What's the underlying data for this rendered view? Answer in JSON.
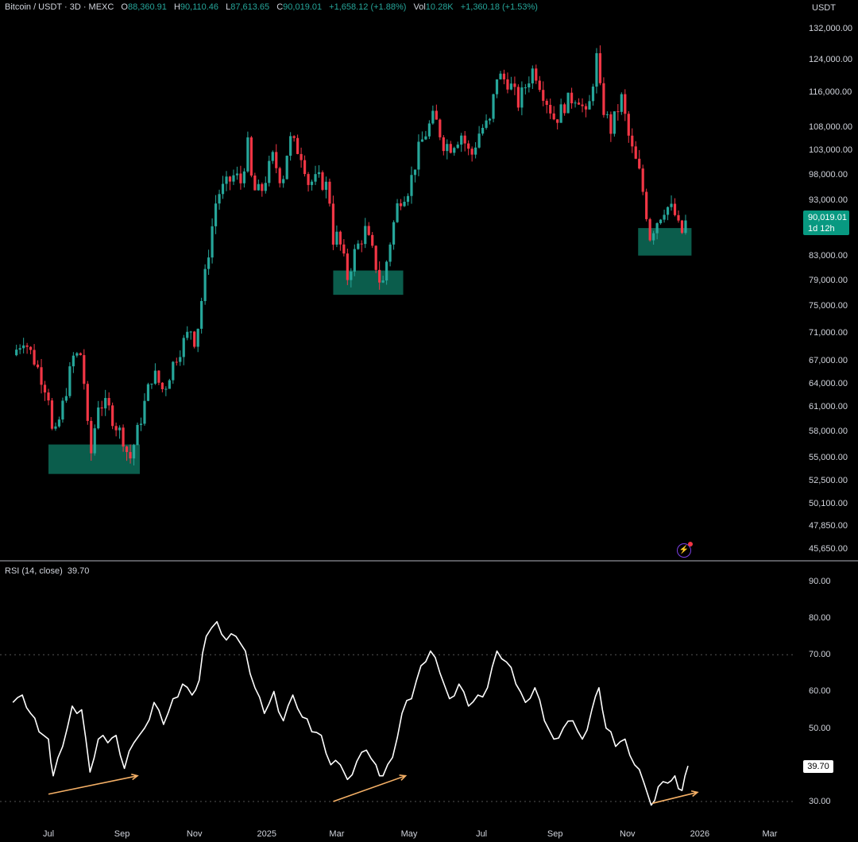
{
  "header": {
    "symbol": "Bitcoin / USDT · 3D · MEXC",
    "o_label": "O",
    "o_value": "88,360.91",
    "h_label": "H",
    "h_value": "90,110.46",
    "l_label": "L",
    "l_value": "87,613.65",
    "c_label": "C",
    "c_value": "90,019.01",
    "change": "+1,658.12 (+1.88%)",
    "vol_label": "Vol",
    "vol_value": "10.28K",
    "vol_change": "+1,360.18 (+1.53%)"
  },
  "price_axis_unit": "USDT",
  "last_price_tag": {
    "price": "90,019.01",
    "countdown": "1d 12h"
  },
  "rsi_header": {
    "label": "RSI (14, close)",
    "value": "39.70"
  },
  "rsi_tag": "39.70",
  "colors": {
    "up": "#26a69a",
    "down": "#f23645",
    "zone": "#0b5d4c",
    "rsi_line": "#ffffff",
    "arrow": "#f5b066",
    "last_price": "#089981"
  },
  "icons": {
    "indicator": "lightning-bolt-icon"
  },
  "chart_data": [
    {
      "type": "candlestick",
      "title": "Bitcoin / USDT · 3D · MEXC",
      "y_scale": "log",
      "ylim": [
        45000,
        135000
      ],
      "price_ticks": [
        "132,000.00",
        "124,000.00",
        "116,000.00",
        "108,000.00",
        "103,000.00",
        "98,000.00",
        "93,000.00",
        "83,000.00",
        "79,000.00",
        "75,000.00",
        "71,000.00",
        "67,000.00",
        "64,000.00",
        "61,000.00",
        "58,000.00",
        "55,000.00",
        "52,500.00",
        "50,100.00",
        "47,850.00",
        "45,650.00"
      ],
      "x_ticks": [
        "Jul",
        "Sep",
        "Nov",
        "2025",
        "Mar",
        "May",
        "Jul",
        "Sep",
        "Nov",
        "2026",
        "Mar"
      ],
      "x_tick_dates": [
        "2024-07-01",
        "2024-09-01",
        "2024-11-01",
        "2025-01-01",
        "2025-03-01",
        "2025-05-01",
        "2025-07-01",
        "2025-09-01",
        "2025-11-01",
        "2026-01-01",
        "2026-03-01"
      ],
      "close_path": [
        [
          "2024-06-01",
          67800
        ],
        [
          "2024-06-10",
          70200
        ],
        [
          "2024-06-20",
          66800
        ],
        [
          "2024-07-01",
          62500
        ],
        [
          "2024-07-05",
          56500
        ],
        [
          "2024-07-12",
          60500
        ],
        [
          "2024-07-22",
          67500
        ],
        [
          "2024-07-29",
          68000
        ],
        [
          "2024-08-05",
          54500
        ],
        [
          "2024-08-12",
          61500
        ],
        [
          "2024-08-20",
          61000
        ],
        [
          "2024-08-26",
          59000
        ],
        [
          "2024-09-03",
          57000
        ],
        [
          "2024-09-07",
          54500
        ],
        [
          "2024-09-15",
          58500
        ],
        [
          "2024-09-27",
          65500
        ],
        [
          "2024-10-06",
          63000
        ],
        [
          "2024-10-16",
          67500
        ],
        [
          "2024-10-29",
          71500
        ],
        [
          "2024-11-02",
          69500
        ],
        [
          "2024-11-11",
          81000
        ],
        [
          "2024-11-20",
          94000
        ],
        [
          "2024-11-28",
          96000
        ],
        [
          "2024-12-05",
          98000
        ],
        [
          "2024-12-10",
          96500
        ],
        [
          "2024-12-16",
          104000
        ],
        [
          "2024-12-20",
          95000
        ],
        [
          "2024-12-27",
          94500
        ],
        [
          "2025-01-06",
          101500
        ],
        [
          "2025-01-14",
          96500
        ],
        [
          "2025-01-20",
          105500
        ],
        [
          "2025-01-23",
          104500
        ],
        [
          "2025-01-31",
          102000
        ],
        [
          "2025-02-05",
          96500
        ],
        [
          "2025-02-14",
          97000
        ],
        [
          "2025-02-22",
          95500
        ],
        [
          "2025-02-26",
          86000
        ],
        [
          "2025-03-02",
          86500
        ],
        [
          "2025-03-10",
          79500
        ],
        [
          "2025-03-16",
          83500
        ],
        [
          "2025-03-25",
          87500
        ],
        [
          "2025-04-01",
          83000
        ],
        [
          "2025-04-08",
          77500
        ],
        [
          "2025-04-14",
          84500
        ],
        [
          "2025-04-22",
          93000
        ],
        [
          "2025-05-01",
          95500
        ],
        [
          "2025-05-10",
          104000
        ],
        [
          "2025-05-22",
          110500
        ],
        [
          "2025-05-30",
          104500
        ],
        [
          "2025-06-05",
          104000
        ],
        [
          "2025-06-14",
          106500
        ],
        [
          "2025-06-22",
          101500
        ],
        [
          "2025-06-30",
          107500
        ],
        [
          "2025-07-08",
          109000
        ],
        [
          "2025-07-14",
          120000
        ],
        [
          "2025-07-24",
          118500
        ],
        [
          "2025-08-01",
          113500
        ],
        [
          "2025-08-10",
          119500
        ],
        [
          "2025-08-14",
          122000
        ],
        [
          "2025-08-22",
          116000
        ],
        [
          "2025-09-01",
          109500
        ],
        [
          "2025-09-10",
          113500
        ],
        [
          "2025-09-20",
          115500
        ],
        [
          "2025-09-28",
          109500
        ],
        [
          "2025-10-06",
          124500
        ],
        [
          "2025-10-10",
          113500
        ],
        [
          "2025-10-18",
          107500
        ],
        [
          "2025-10-27",
          114500
        ],
        [
          "2025-11-03",
          104500
        ],
        [
          "2025-11-12",
          97500
        ],
        [
          "2025-11-20",
          86500
        ],
        [
          "2025-11-24",
          88500
        ],
        [
          "2025-12-03",
          92000
        ],
        [
          "2025-12-10",
          91000
        ],
        [
          "2025-12-16",
          86500
        ],
        [
          "2025-12-22",
          90019
        ]
      ],
      "support_zones": [
        {
          "y_range": [
            53200,
            56500
          ],
          "x_range": [
            "2024-07-01",
            "2024-09-16"
          ]
        },
        {
          "y_range": [
            76700,
            80600
          ],
          "x_range": [
            "2025-02-26",
            "2025-04-26"
          ]
        },
        {
          "y_range": [
            83100,
            87900
          ],
          "x_range": [
            "2025-11-10",
            "2025-12-25"
          ]
        }
      ],
      "last_price": 90019.01
    },
    {
      "type": "line",
      "title": "RSI (14, close)",
      "ylim": [
        25,
        95
      ],
      "y_ticks": [
        "90.00",
        "80.00",
        "70.00",
        "60.00",
        "50.00",
        "30.00"
      ],
      "reference_lines": [
        70,
        30
      ],
      "series": [
        {
          "values_path": [
            [
              "2024-06-01",
              57
            ],
            [
              "2024-06-09",
              59
            ],
            [
              "2024-06-16",
              54
            ],
            [
              "2024-06-23",
              49
            ],
            [
              "2024-07-01",
              47
            ],
            [
              "2024-07-05",
              37
            ],
            [
              "2024-07-13",
              45
            ],
            [
              "2024-07-21",
              56
            ],
            [
              "2024-07-29",
              55
            ],
            [
              "2024-08-05",
              38
            ],
            [
              "2024-08-12",
              47
            ],
            [
              "2024-08-20",
              46
            ],
            [
              "2024-08-27",
              48
            ],
            [
              "2024-09-03",
              39
            ],
            [
              "2024-09-11",
              46
            ],
            [
              "2024-09-20",
              50
            ],
            [
              "2024-09-28",
              57
            ],
            [
              "2024-10-06",
              51
            ],
            [
              "2024-10-14",
              58
            ],
            [
              "2024-10-22",
              62
            ],
            [
              "2024-10-30",
              59
            ],
            [
              "2024-11-05",
              63
            ],
            [
              "2024-11-11",
              75
            ],
            [
              "2024-11-20",
              79
            ],
            [
              "2024-11-28",
              74
            ],
            [
              "2024-12-06",
              75
            ],
            [
              "2024-12-14",
              71
            ],
            [
              "2024-12-22",
              61
            ],
            [
              "2024-12-30",
              54
            ],
            [
              "2025-01-07",
              60
            ],
            [
              "2025-01-15",
              52
            ],
            [
              "2025-01-23",
              59
            ],
            [
              "2025-01-31",
              53
            ],
            [
              "2025-02-08",
              49
            ],
            [
              "2025-02-16",
              48
            ],
            [
              "2025-02-24",
              40
            ],
            [
              "2025-03-04",
              40
            ],
            [
              "2025-03-10",
              36
            ],
            [
              "2025-03-18",
              41
            ],
            [
              "2025-03-26",
              44
            ],
            [
              "2025-04-03",
              40
            ],
            [
              "2025-04-09",
              37
            ],
            [
              "2025-04-17",
              42
            ],
            [
              "2025-04-25",
              54
            ],
            [
              "2025-05-03",
              58
            ],
            [
              "2025-05-11",
              67
            ],
            [
              "2025-05-19",
              71
            ],
            [
              "2025-05-27",
              65
            ],
            [
              "2025-06-04",
              58
            ],
            [
              "2025-06-12",
              62
            ],
            [
              "2025-06-20",
              56
            ],
            [
              "2025-06-28",
              59
            ],
            [
              "2025-07-06",
              61
            ],
            [
              "2025-07-14",
              71
            ],
            [
              "2025-07-22",
              68
            ],
            [
              "2025-07-30",
              62
            ],
            [
              "2025-08-07",
              57
            ],
            [
              "2025-08-15",
              61
            ],
            [
              "2025-08-23",
              52
            ],
            [
              "2025-08-31",
              47
            ],
            [
              "2025-09-08",
              50
            ],
            [
              "2025-09-16",
              52
            ],
            [
              "2025-09-24",
              47
            ],
            [
              "2025-10-02",
              55
            ],
            [
              "2025-10-08",
              61
            ],
            [
              "2025-10-14",
              50
            ],
            [
              "2025-10-22",
              45
            ],
            [
              "2025-10-30",
              47
            ],
            [
              "2025-11-07",
              40
            ],
            [
              "2025-11-15",
              35
            ],
            [
              "2025-11-21",
              29
            ],
            [
              "2025-11-27",
              34
            ],
            [
              "2025-12-05",
              35
            ],
            [
              "2025-12-11",
              37
            ],
            [
              "2025-12-17",
              33
            ],
            [
              "2025-12-22",
              39.7
            ]
          ]
        }
      ],
      "divergence_arrows": [
        {
          "from": [
            "2024-07-01",
            32
          ],
          "to": [
            "2024-09-14",
            37
          ]
        },
        {
          "from": [
            "2025-02-26",
            30
          ],
          "to": [
            "2025-04-28",
            37
          ]
        },
        {
          "from": [
            "2025-11-22",
            29.5
          ],
          "to": [
            "2025-12-30",
            32.5
          ]
        }
      ],
      "last_value": 39.7
    }
  ]
}
